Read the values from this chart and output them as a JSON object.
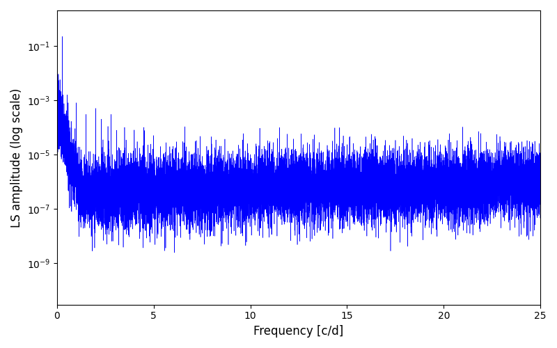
{
  "xlabel": "Frequency [c/d]",
  "ylabel": "LS amplitude (log scale)",
  "line_color": "#0000ff",
  "xlim": [
    0,
    25
  ],
  "ylim": [
    3e-11,
    2.0
  ],
  "yticks": [
    1e-09,
    1e-07,
    1e-05,
    0.001,
    0.1
  ],
  "xticks": [
    0,
    5,
    10,
    15,
    20,
    25
  ],
  "figsize": [
    8.0,
    5.0
  ],
  "dpi": 100,
  "n_points": 15000,
  "peak_freq": 0.28,
  "peak_amp": 0.22,
  "seed": 7,
  "background_color": "#ffffff",
  "noise_std": 1.5,
  "envelope_decay": 6.0,
  "floor_level": 2e-07,
  "floor_rise_end": 8e-07
}
